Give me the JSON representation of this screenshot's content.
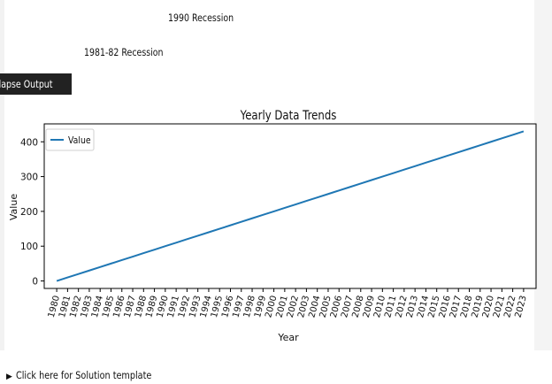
{
  "annotations": {
    "recession_1990": "1990 Recession",
    "recession_1981": "1981-82 Recession"
  },
  "tooltip": {
    "label": "llapse Output"
  },
  "footer": {
    "solution_label": "Click here for Solution template"
  },
  "colors": {
    "line": "#1f77b4",
    "axis": "#000000"
  },
  "chart_data": {
    "type": "line",
    "title": "Yearly Data Trends",
    "xlabel": "Year",
    "ylabel": "Value",
    "x": [
      1980,
      1981,
      1982,
      1983,
      1984,
      1985,
      1986,
      1987,
      1988,
      1989,
      1990,
      1991,
      1992,
      1993,
      1994,
      1995,
      1996,
      1997,
      1998,
      1999,
      2000,
      2001,
      2002,
      2003,
      2004,
      2005,
      2006,
      2007,
      2008,
      2009,
      2010,
      2011,
      2012,
      2013,
      2014,
      2015,
      2016,
      2017,
      2018,
      2019,
      2020,
      2021,
      2022,
      2023
    ],
    "series": [
      {
        "name": "Value",
        "values": [
          0,
          10,
          20,
          30,
          40,
          50,
          60,
          70,
          80,
          90,
          100,
          110,
          120,
          130,
          140,
          150,
          160,
          170,
          180,
          190,
          200,
          210,
          220,
          230,
          240,
          250,
          260,
          270,
          280,
          290,
          300,
          310,
          320,
          330,
          340,
          350,
          360,
          370,
          380,
          390,
          400,
          410,
          420,
          430
        ]
      }
    ],
    "yticks": [
      0,
      100,
      200,
      300,
      400
    ],
    "xlim": [
      1978.85,
      2024.15
    ],
    "ylim": [
      -21.5,
      451.5
    ],
    "legend": "upper-left",
    "grid": false
  }
}
